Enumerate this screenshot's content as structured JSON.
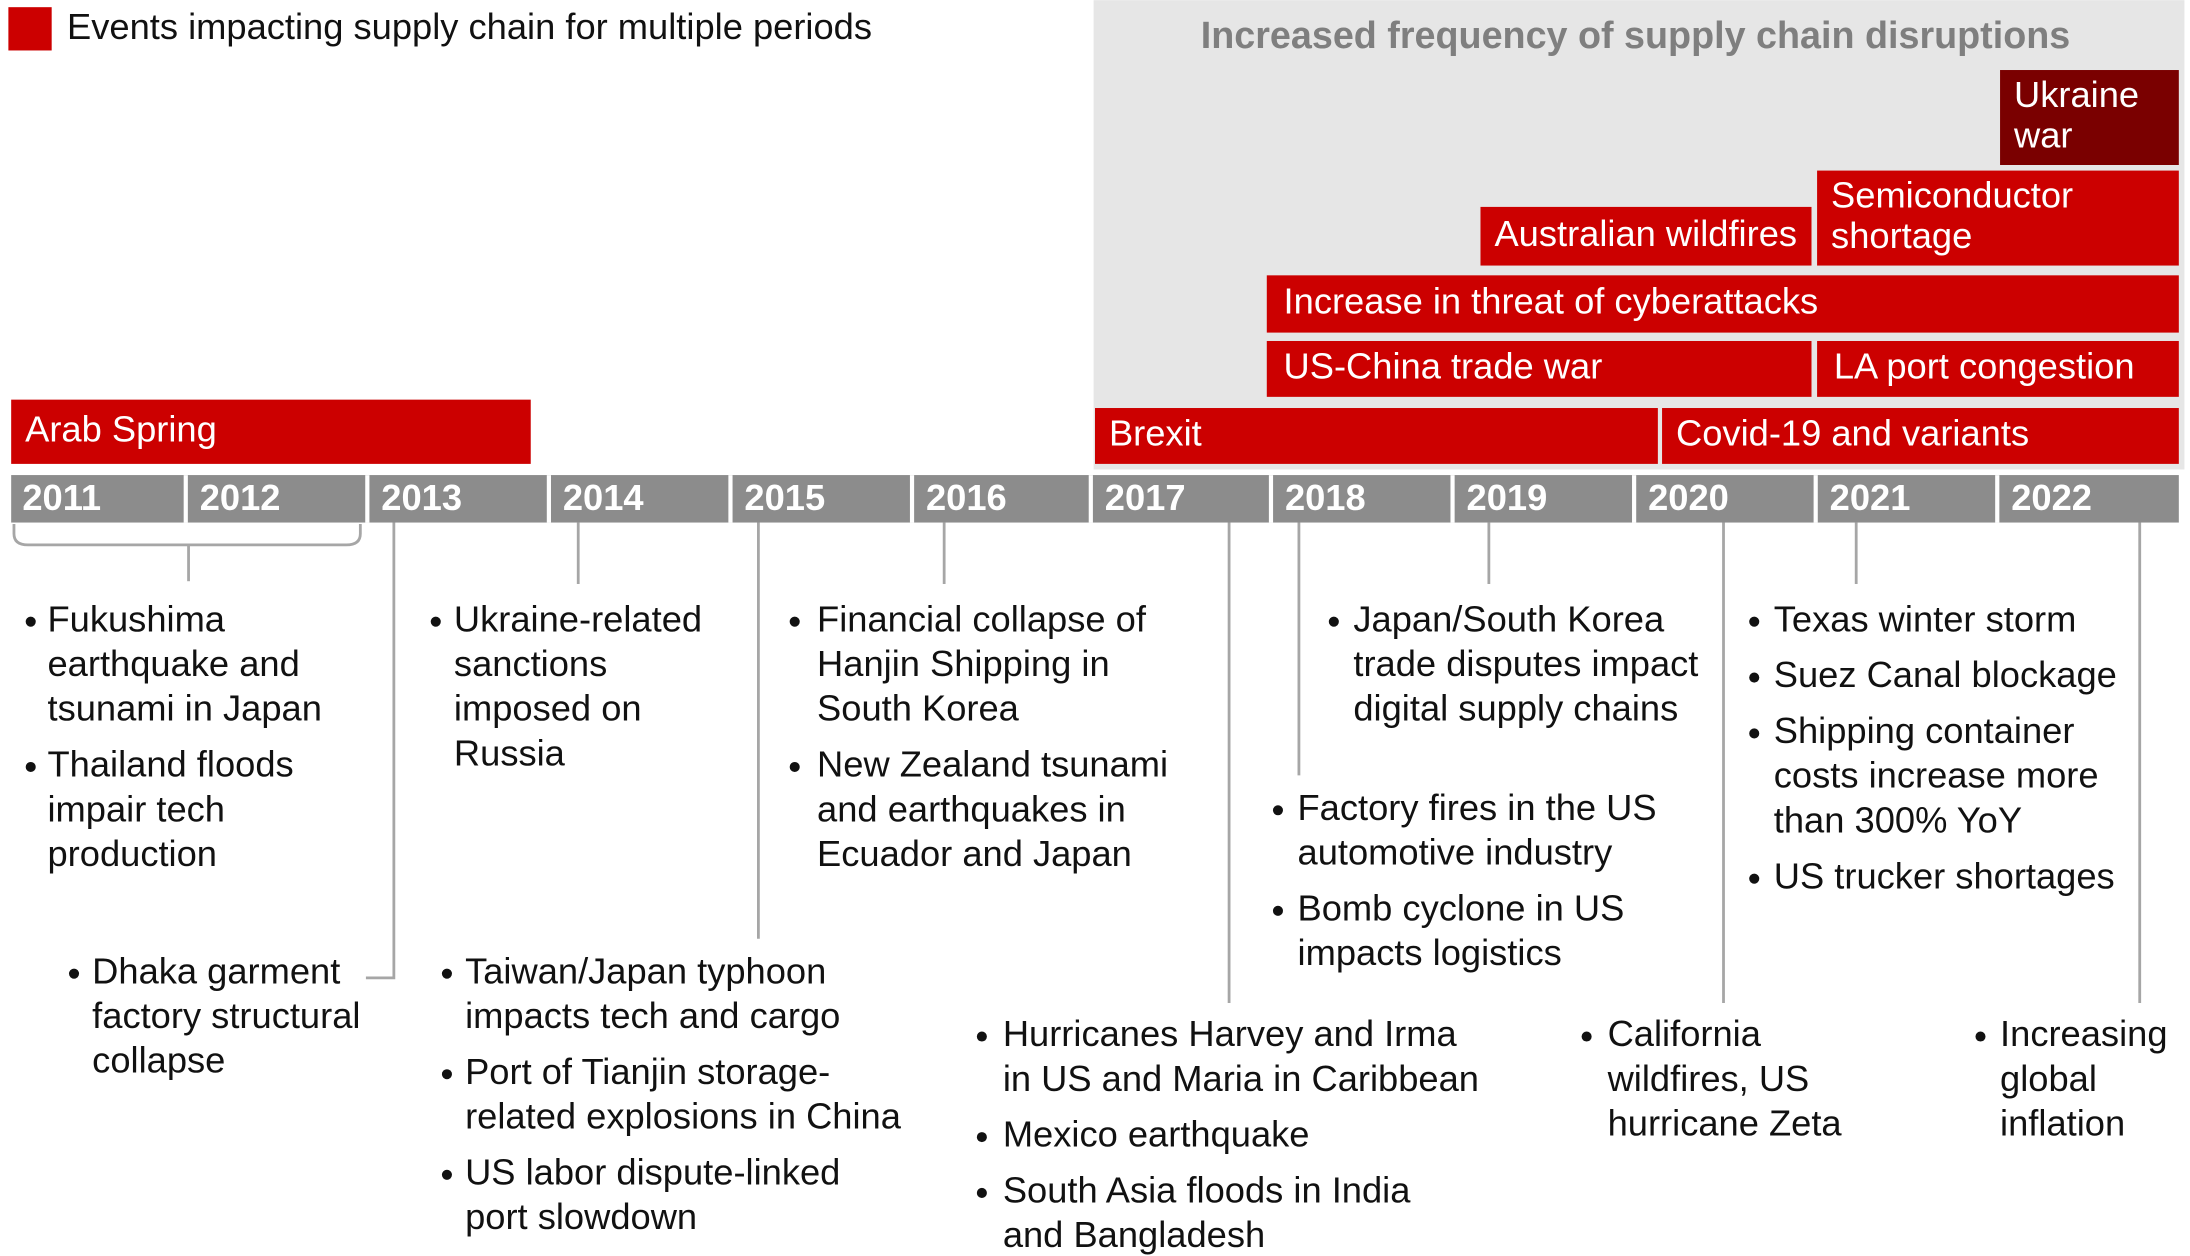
{
  "legend": {
    "label": "Events impacting supply chain for multiple periods",
    "color": "#cc0000"
  },
  "banner": {
    "title": "Increased frequency of supply chain disruptions"
  },
  "years": [
    "2011",
    "2012",
    "2013",
    "2014",
    "2015",
    "2016",
    "2017",
    "2018",
    "2019",
    "2020",
    "2021",
    "2022"
  ],
  "bars": [
    {
      "label": [
        "Arab Spring"
      ],
      "color": "#cc0000"
    },
    {
      "label": [
        "Brexit"
      ],
      "color": "#cc0000"
    },
    {
      "label": [
        "Covid-19 and variants"
      ],
      "color": "#cc0000"
    },
    {
      "label": [
        "US-China trade war"
      ],
      "color": "#cc0000"
    },
    {
      "label": [
        "LA port congestion"
      ],
      "color": "#cc0000"
    },
    {
      "label": [
        "Increase in threat of cyberattacks"
      ],
      "color": "#cc0000"
    },
    {
      "label": [
        "Australian wildfires"
      ],
      "color": "#cc0000"
    },
    {
      "label": [
        "Semiconductor",
        "shortage"
      ],
      "color": "#cc0000"
    },
    {
      "label": [
        "Ukraine",
        "war"
      ],
      "color": "#7a0000"
    }
  ],
  "events": [
    {
      "items": [
        [
          "Fukushima",
          "earthquake and",
          "tsunami in Japan"
        ],
        [
          "Thailand floods",
          "impair tech",
          "production"
        ]
      ]
    },
    {
      "items": [
        [
          "Dhaka garment",
          "factory structural",
          "collapse"
        ]
      ]
    },
    {
      "items": [
        [
          "Ukraine-related",
          "sanctions",
          "imposed on",
          "Russia"
        ]
      ]
    },
    {
      "items": [
        [
          "Taiwan/Japan typhoon",
          "impacts tech and cargo"
        ],
        [
          "Port of Tianjin storage-",
          "related explosions in China"
        ],
        [
          "US labor dispute-linked",
          "port slowdown"
        ]
      ]
    },
    {
      "items": [
        [
          "Financial collapse of",
          "Hanjin Shipping in",
          "South Korea"
        ],
        [
          "New Zealand tsunami",
          "and earthquakes in",
          "Ecuador and Japan"
        ]
      ]
    },
    {
      "items": [
        [
          "Hurricanes Harvey and Irma",
          "in US and Maria in Caribbean"
        ],
        [
          "Mexico earthquake"
        ],
        [
          "South Asia floods in India",
          "and Bangladesh"
        ]
      ]
    },
    {
      "items": [
        [
          "Factory fires in the US",
          "automotive industry"
        ],
        [
          "Bomb cyclone in US",
          "impacts logistics"
        ]
      ]
    },
    {
      "items": [
        [
          "Japan/South Korea",
          "trade disputes impact",
          "digital supply chains"
        ]
      ]
    },
    {
      "items": [
        [
          "California",
          "wildfires, US",
          "hurricane Zeta"
        ]
      ]
    },
    {
      "items": [
        [
          "Texas winter storm"
        ],
        [
          "Suez Canal blockage"
        ],
        [
          "Shipping container",
          "costs increase more",
          "than 300% YoY"
        ],
        [
          "US trucker shortages"
        ]
      ]
    },
    {
      "items": [
        [
          "Increasing",
          "global",
          "inflation"
        ]
      ]
    }
  ]
}
